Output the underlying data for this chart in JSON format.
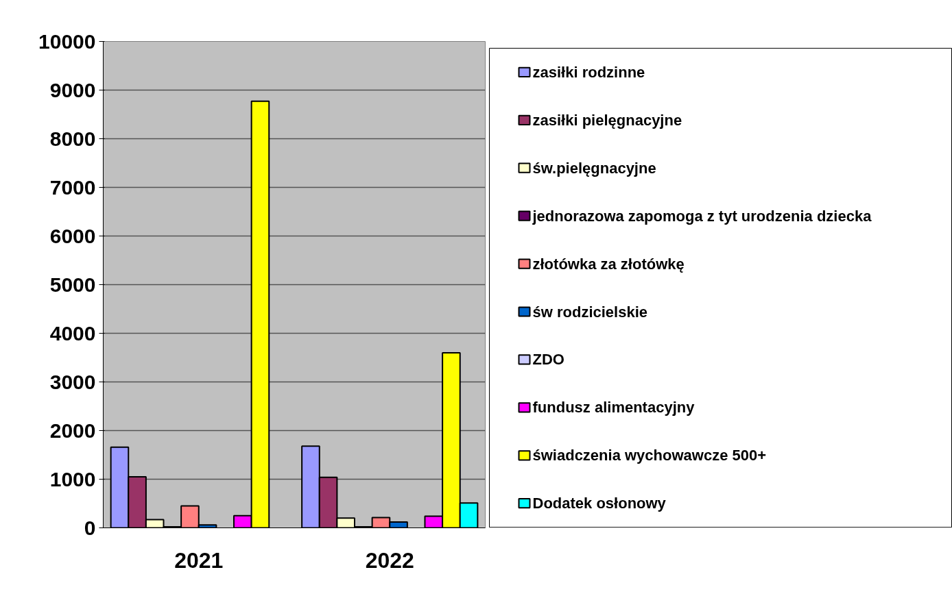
{
  "chart_data": {
    "type": "bar",
    "categories": [
      "2021",
      "2022"
    ],
    "series": [
      {
        "name": "zasiłki rodzinne",
        "color": "#9999ff",
        "values": [
          1660,
          1680
        ]
      },
      {
        "name": "zasiłki pielęgnacyjne",
        "color": "#993366",
        "values": [
          1050,
          1040
        ]
      },
      {
        "name": "św.pielęgnacyjne",
        "color": "#ffffcc",
        "values": [
          170,
          200
        ]
      },
      {
        "name": "jednorazowa zapomoga z tyt urodzenia dziecka",
        "color": "#660066",
        "values": [
          20,
          20
        ]
      },
      {
        "name": "złotówka za złotówkę",
        "color": "#ff8080",
        "values": [
          450,
          210
        ]
      },
      {
        "name": "św rodzicielskie",
        "color": "#0066cc",
        "values": [
          60,
          120
        ]
      },
      {
        "name": "ZDO",
        "color": "#ccccff",
        "values": [
          null,
          null
        ]
      },
      {
        "name": "fundusz alimentacyjny",
        "color": "#ff00ff",
        "values": [
          250,
          240
        ]
      },
      {
        "name": "świadczenia wychowawcze 500+",
        "color": "#ffff00",
        "values": [
          8770,
          3600
        ]
      },
      {
        "name": "Dodatek osłonowy",
        "color": "#00ffff",
        "values": [
          null,
          510
        ]
      }
    ],
    "ylim": [
      0,
      10000
    ],
    "yticks": [
      0,
      1000,
      2000,
      3000,
      4000,
      5000,
      6000,
      7000,
      8000,
      9000,
      10000
    ],
    "grid": "y",
    "legend": "right"
  }
}
